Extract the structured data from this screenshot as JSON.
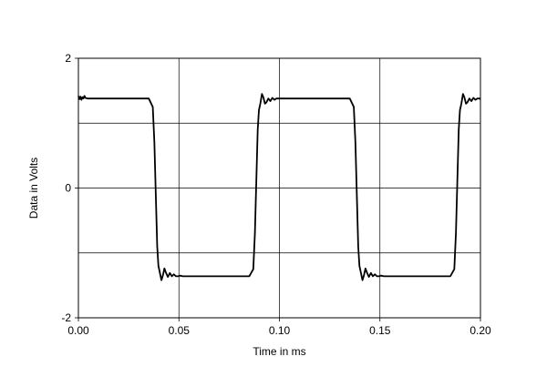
{
  "chart_data": {
    "type": "line",
    "title": "",
    "xlabel": "Time in ms",
    "ylabel": "Data in Volts",
    "xlim": [
      0,
      0.2
    ],
    "ylim": [
      -2,
      2
    ],
    "grid": true,
    "x_ticks": [
      0,
      0.05,
      0.1,
      0.15,
      0.2
    ],
    "x_tick_labels": [
      "0.00",
      "0.05",
      "0.10",
      "0.15",
      "0.20"
    ],
    "y_ticks": [
      -2,
      0,
      2
    ],
    "y_tick_labels": [
      "-2",
      "0",
      "2"
    ],
    "y_minor_gridlines": [
      -1,
      1
    ],
    "line_color": "#000000",
    "series": [
      {
        "x": [
          0,
          0.0005,
          0.001,
          0.0015,
          0.002,
          0.0025,
          0.003,
          0.0035,
          0.0045,
          0.006,
          0.02,
          0.035,
          0.037,
          0.0378,
          0.0385,
          0.0392,
          0.0398,
          0.0405,
          0.0413,
          0.042,
          0.0428,
          0.0435,
          0.0445,
          0.0455,
          0.0465,
          0.0475,
          0.0485,
          0.0495,
          0.0505,
          0.052,
          0.06,
          0.07,
          0.085,
          0.087,
          0.0878,
          0.0885,
          0.0892,
          0.0898,
          0.0905,
          0.0913,
          0.092,
          0.0928,
          0.0935,
          0.0945,
          0.0955,
          0.0965,
          0.0975,
          0.0985,
          0.0995,
          0.1005,
          0.102,
          0.11,
          0.12,
          0.135,
          0.137,
          0.1378,
          0.1385,
          0.1392,
          0.1398,
          0.1405,
          0.1413,
          0.142,
          0.1428,
          0.1435,
          0.1445,
          0.1455,
          0.1465,
          0.1475,
          0.1485,
          0.1495,
          0.1505,
          0.152,
          0.16,
          0.17,
          0.185,
          0.187,
          0.1878,
          0.1885,
          0.1892,
          0.1898,
          0.1905,
          0.1913,
          0.192,
          0.1928,
          0.1935,
          0.1945,
          0.1955,
          0.1965,
          0.1975,
          0.1985,
          0.1995,
          0.2
        ],
        "y": [
          1.42,
          1.37,
          1.41,
          1.36,
          1.4,
          1.38,
          1.42,
          1.39,
          1.38,
          1.38,
          1.38,
          1.38,
          1.25,
          0.7,
          -0.1,
          -0.9,
          -1.2,
          -1.3,
          -1.42,
          -1.35,
          -1.24,
          -1.3,
          -1.37,
          -1.31,
          -1.36,
          -1.33,
          -1.36,
          -1.36,
          -1.35,
          -1.36,
          -1.36,
          -1.36,
          -1.36,
          -1.25,
          -0.7,
          0.1,
          0.9,
          1.2,
          1.3,
          1.45,
          1.4,
          1.3,
          1.32,
          1.38,
          1.34,
          1.39,
          1.36,
          1.38,
          1.38,
          1.38,
          1.38,
          1.38,
          1.38,
          1.38,
          1.25,
          0.7,
          -0.1,
          -0.9,
          -1.2,
          -1.3,
          -1.42,
          -1.35,
          -1.24,
          -1.3,
          -1.37,
          -1.31,
          -1.36,
          -1.33,
          -1.36,
          -1.36,
          -1.35,
          -1.36,
          -1.36,
          -1.36,
          -1.36,
          -1.25,
          -0.7,
          0.1,
          0.9,
          1.2,
          1.3,
          1.45,
          1.4,
          1.3,
          1.32,
          1.38,
          1.34,
          1.39,
          1.36,
          1.38,
          1.38,
          1.37
        ]
      }
    ]
  }
}
